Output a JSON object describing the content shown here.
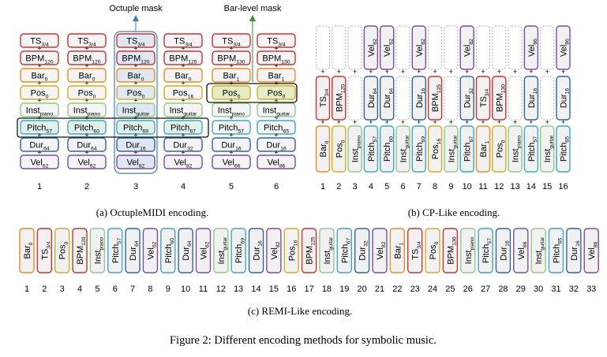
{
  "colors": {
    "TS": "#d0302f",
    "BPM": "#d0302f",
    "Bar": "#f08a1e",
    "Pos": "#d3ad1f",
    "Inst": "#8fc98a",
    "Pitch": "#39a8c6",
    "Dur": "#2e63a6",
    "Vel": "#7a4aa8",
    "blank": "#aaaaaa",
    "octuple_mask": "#3b7ec4",
    "bar_mask": "#3a8a3a"
  },
  "octuple": {
    "mask_label": "Octuple mask",
    "bar_mask_label": "Bar-level mask",
    "caption": "(a) OctupleMIDI encoding.",
    "columns": [
      {
        "num": "1",
        "tokens": [
          [
            "TS",
            "3/4"
          ],
          [
            "BPM",
            "120"
          ],
          [
            "Bar",
            "0"
          ],
          [
            "Pos",
            "0"
          ],
          [
            "Inst",
            "piano"
          ],
          [
            "Pitch",
            "57"
          ],
          [
            "Dur",
            "64"
          ],
          [
            "Vel",
            "62"
          ]
        ]
      },
      {
        "num": "2",
        "tokens": [
          [
            "TS",
            "3/4"
          ],
          [
            "BPM",
            "120"
          ],
          [
            "Bar",
            "0"
          ],
          [
            "Pos",
            "0"
          ],
          [
            "Inst",
            "piano"
          ],
          [
            "Pitch",
            "60"
          ],
          [
            "Dur",
            "64"
          ],
          [
            "Vel",
            "62"
          ]
        ]
      },
      {
        "num": "3",
        "tokens": [
          [
            "TS",
            "3/4"
          ],
          [
            "BPM",
            "120"
          ],
          [
            "Bar",
            "0"
          ],
          [
            "Pos",
            "0"
          ],
          [
            "Inst",
            "guitar"
          ],
          [
            "Pitch",
            "69"
          ],
          [
            "Dur",
            "16"
          ],
          [
            "Vel",
            "82"
          ]
        ]
      },
      {
        "num": "4",
        "tokens": [
          [
            "TS",
            "3/4"
          ],
          [
            "BPM",
            "125"
          ],
          [
            "Bar",
            "0"
          ],
          [
            "Pos",
            "16"
          ],
          [
            "Inst",
            "guitar"
          ],
          [
            "Pitch",
            "67"
          ],
          [
            "Dur",
            "32"
          ],
          [
            "Vel",
            "82"
          ]
        ]
      },
      {
        "num": "5",
        "tokens": [
          [
            "TS",
            "3/4"
          ],
          [
            "BPM",
            "130"
          ],
          [
            "Bar",
            "1"
          ],
          [
            "Pos",
            "0"
          ],
          [
            "Inst",
            "piano"
          ],
          [
            "Pitch",
            "57"
          ],
          [
            "Dur",
            "16"
          ],
          [
            "Vel",
            "66"
          ]
        ]
      },
      {
        "num": "6",
        "tokens": [
          [
            "TS",
            "3/4"
          ],
          [
            "BPM",
            "130"
          ],
          [
            "Bar",
            "1"
          ],
          [
            "Pos",
            "0"
          ],
          [
            "Inst",
            "guitar"
          ],
          [
            "Pitch",
            "65"
          ],
          [
            "Dur",
            "16"
          ],
          [
            "Vel",
            "86"
          ]
        ]
      }
    ]
  },
  "cp": {
    "caption": "(b) CP-Like encoding.",
    "columns": [
      {
        "num": "1",
        "bottom": [
          "Bar",
          "0"
        ],
        "mid": [
          "TS",
          "3/4"
        ],
        "top": null
      },
      {
        "num": "2",
        "bottom": [
          "Pos",
          "0"
        ],
        "mid": [
          "BPM",
          "120"
        ],
        "top": null
      },
      {
        "num": "3",
        "bottom": [
          "Inst",
          "piano"
        ],
        "mid": null,
        "top": null
      },
      {
        "num": "4",
        "bottom": [
          "Pitch",
          "57"
        ],
        "mid": [
          "Dur",
          "64"
        ],
        "top": [
          "Vel",
          "62"
        ]
      },
      {
        "num": "5",
        "bottom": [
          "Pitch",
          "60"
        ],
        "mid": [
          "Dur",
          "64"
        ],
        "top": [
          "Vel",
          "62"
        ]
      },
      {
        "num": "6",
        "bottom": [
          "Inst",
          "guitar"
        ],
        "mid": null,
        "top": null
      },
      {
        "num": "7",
        "bottom": [
          "Pitch",
          "69"
        ],
        "mid": [
          "Dur",
          "16"
        ],
        "top": [
          "Vel",
          "82"
        ]
      },
      {
        "num": "8",
        "bottom": [
          "Pos",
          "16"
        ],
        "mid": [
          "BPM",
          "125"
        ],
        "top": null
      },
      {
        "num": "9",
        "bottom": [
          "Inst",
          "guitar"
        ],
        "mid": null,
        "top": null
      },
      {
        "num": "10",
        "bottom": [
          "Pitch",
          "67"
        ],
        "mid": [
          "Dur",
          "32"
        ],
        "top": [
          "Vel",
          "82"
        ]
      },
      {
        "num": "11",
        "bottom": [
          "Bar",
          "1"
        ],
        "mid": [
          "TS",
          "3/4"
        ],
        "top": null
      },
      {
        "num": "12",
        "bottom": [
          "Pos",
          "0"
        ],
        "mid": [
          "BPM",
          "130"
        ],
        "top": null
      },
      {
        "num": "13",
        "bottom": [
          "Inst",
          "piano"
        ],
        "mid": null,
        "top": null
      },
      {
        "num": "14",
        "bottom": [
          "Pitch",
          "57"
        ],
        "mid": [
          "Dur",
          "16"
        ],
        "top": [
          "Vel",
          "66"
        ]
      },
      {
        "num": "15",
        "bottom": [
          "Inst",
          "guitar"
        ],
        "mid": null,
        "top": null
      },
      {
        "num": "16",
        "bottom": [
          "Pitch",
          "65"
        ],
        "mid": [
          "Dur",
          "16"
        ],
        "top": [
          "Vel",
          "86"
        ]
      }
    ]
  },
  "remi": {
    "caption": "(c) REMI-Like encoding.",
    "tokens": [
      [
        "Bar",
        "0"
      ],
      [
        "TS",
        "3/4"
      ],
      [
        "Pos",
        "0"
      ],
      [
        "BPM",
        "120"
      ],
      [
        "Inst",
        "piano"
      ],
      [
        "Pitch",
        "57"
      ],
      [
        "Dur",
        "64"
      ],
      [
        "Vel",
        "62"
      ],
      [
        "Pitch",
        "60"
      ],
      [
        "Dur",
        "64"
      ],
      [
        "Vel",
        "62"
      ],
      [
        "Inst",
        "guitar"
      ],
      [
        "Pitch",
        "69"
      ],
      [
        "Dur",
        "16"
      ],
      [
        "Vel",
        "82"
      ],
      [
        "Pos",
        "16"
      ],
      [
        "BPM",
        "125"
      ],
      [
        "Inst",
        "guitar"
      ],
      [
        "Pitch",
        "67"
      ],
      [
        "Dur",
        "32"
      ],
      [
        "Vel",
        "82"
      ],
      [
        "Bar",
        "1"
      ],
      [
        "TS",
        "3/4"
      ],
      [
        "Pos",
        "0"
      ],
      [
        "BPM",
        "130"
      ],
      [
        "Inst",
        "piano"
      ],
      [
        "Pitch",
        "57"
      ],
      [
        "Dur",
        "16"
      ],
      [
        "Vel",
        "66"
      ],
      [
        "Inst",
        "guitar"
      ],
      [
        "Pitch",
        "65"
      ],
      [
        "Dur",
        "16"
      ],
      [
        "Vel",
        "86"
      ]
    ],
    "nums": [
      "1",
      "2",
      "3",
      "4",
      "5",
      "6",
      "7",
      "8",
      "9",
      "10",
      "11",
      "12",
      "13",
      "14",
      "15",
      "16",
      "17",
      "18",
      "19",
      "20",
      "21",
      "22",
      "23",
      "24",
      "25",
      "26",
      "27",
      "28",
      "29",
      "30",
      "31",
      "32",
      "33"
    ]
  },
  "figure_caption": "Figure 2: Different encoding methods for symbolic music."
}
